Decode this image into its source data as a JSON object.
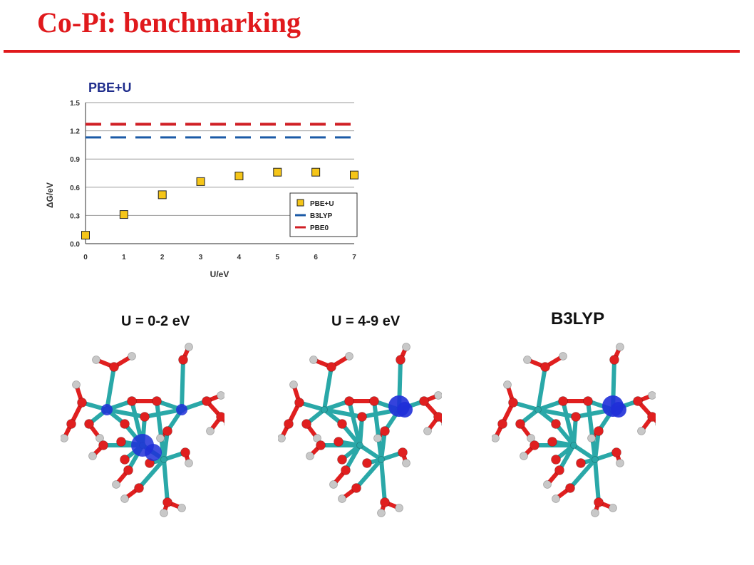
{
  "slide": {
    "title": "Co-Pi: benchmarking"
  },
  "chart_label": "PBE+U",
  "chart_data": {
    "type": "scatter",
    "title": "",
    "xlabel": "U/eV",
    "ylabel": "ΔG/eV",
    "xlim": [
      0,
      7
    ],
    "ylim": [
      0.0,
      1.5
    ],
    "x_ticks": [
      "0",
      "1",
      "2",
      "3",
      "4",
      "5",
      "6",
      "7"
    ],
    "y_ticks": [
      "0.0",
      "0.3",
      "0.6",
      "0.9",
      "1.2",
      "1.5"
    ],
    "grid": "horizontal",
    "legend_position": "bottom-right",
    "series": [
      {
        "name": "PBE+U",
        "style": "square-markers",
        "color": "#f5c518",
        "x": [
          0,
          1,
          2,
          3,
          4,
          5,
          6,
          7
        ],
        "values": [
          0.09,
          0.31,
          0.52,
          0.66,
          0.72,
          0.76,
          0.76,
          0.73
        ]
      },
      {
        "name": "B3LYP",
        "style": "dashed-line",
        "color": "#1b5aa6",
        "value": 1.13
      },
      {
        "name": "PBE0",
        "style": "dashed-line",
        "color": "#d01f25",
        "value": 1.27
      }
    ]
  },
  "panels": [
    {
      "caption": "U = 0-2 eV",
      "spin_density": "delocalized-two-sites"
    },
    {
      "caption": "U = 4-9 eV",
      "spin_density": "localized-one-site"
    },
    {
      "caption": "B3LYP",
      "spin_density": "localized-one-site"
    }
  ],
  "colors": {
    "title": "#e0191c",
    "cobalt": "#2aa8a8",
    "oxygen": "#e01f1f",
    "hydrogen": "#c8c8c8",
    "spin": "#1f2fd8"
  }
}
